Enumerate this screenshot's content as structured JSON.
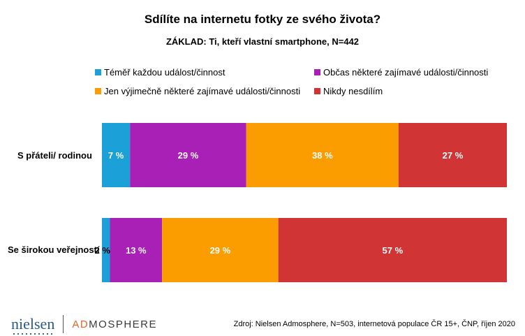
{
  "chart_data": {
    "type": "bar",
    "orientation": "horizontal",
    "stacked": true,
    "title": "Sdílíte na internetu fotky ze svého života?",
    "subtitle": "ZÁKLAD: Ti, kteří vlastní smartphone, N=442",
    "categories": [
      "S přáteli/ rodinou",
      "Se širokou veřejností"
    ],
    "series": [
      {
        "name": "Téměř každou událost/činnost",
        "color": "#1ba1d8",
        "values": [
          7,
          2
        ],
        "labels": [
          "7 %",
          "2 %"
        ]
      },
      {
        "name": "Občas některé zajímavé události/činnosti",
        "color": "#a920b6",
        "values": [
          29,
          13
        ],
        "labels": [
          "29 %",
          "13 %"
        ]
      },
      {
        "name": "Jen výjimečně některé zajímavé události/činnosti",
        "color": "#fb9c00",
        "values": [
          38,
          29
        ],
        "labels": [
          "38 %",
          "29 %"
        ]
      },
      {
        "name": "Nikdy nesdílím",
        "color": "#d03434",
        "values": [
          27,
          57
        ],
        "labels": [
          "27 %",
          "57 %"
        ]
      }
    ],
    "legend_position": "top",
    "grid": false
  },
  "footer": {
    "source": "Zdroj: Nielsen Admosphere, N=503, internetová populace ČR 15+, ČNP, říjen 2020",
    "logo_left": "nielsen",
    "logo_right_accent": "AD",
    "logo_right_rest": "MOSPHERE"
  }
}
